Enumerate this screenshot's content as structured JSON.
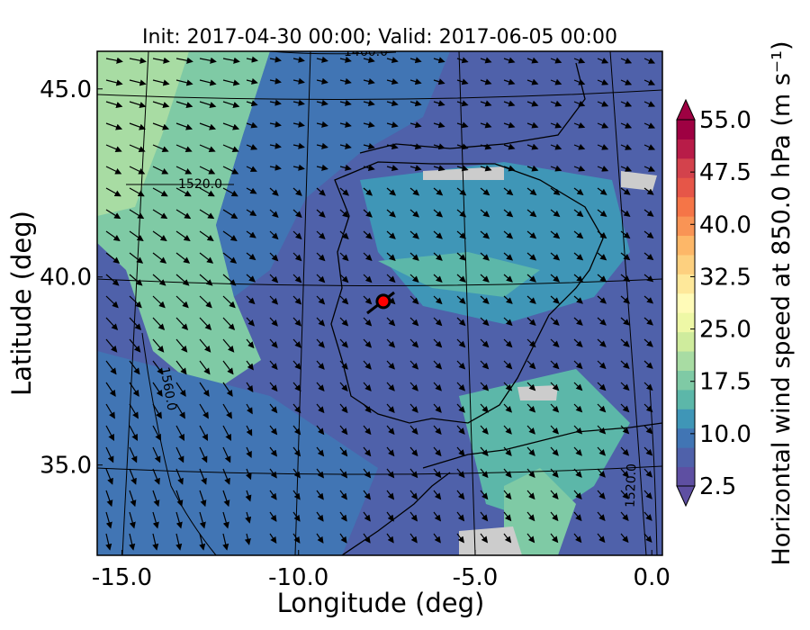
{
  "chart_data": {
    "type": "heatmap",
    "title": "Init: 2017-04-30 00:00; Valid: 2017-06-05 00:00",
    "xlabel": "Longitude (deg)",
    "ylabel": "Latitude (deg)",
    "xlim": [
      -15.7,
      0.3
    ],
    "ylim": [
      32.6,
      46.0
    ],
    "xticks": [
      {
        "value": -15,
        "label": "-15.0"
      },
      {
        "value": -10,
        "label": "-10.0"
      },
      {
        "value": -5,
        "label": "-5.0"
      },
      {
        "value": 0,
        "label": "0.0"
      }
    ],
    "yticks": [
      {
        "value": 35,
        "label": "35.0"
      },
      {
        "value": 40,
        "label": "40.0"
      },
      {
        "value": 45,
        "label": "45.0"
      }
    ],
    "colorbar": {
      "label": "Horizontal wind speed at 850.0 hPa (m s⁻¹)",
      "min": 2.5,
      "max": 55.0,
      "step": 2.5,
      "extend": "both",
      "tick_labels": [
        "2.5",
        "10.0",
        "17.5",
        "25.0",
        "32.5",
        "40.0",
        "47.5",
        "55.0"
      ],
      "tick_values": [
        2.5,
        10.0,
        17.5,
        25.0,
        32.5,
        40.0,
        47.5,
        55.0
      ],
      "colors": [
        "#5e4fa2",
        "#4f61aa",
        "#4175b4",
        "#3f96b7",
        "#5cb7a9",
        "#7fcaa5",
        "#a8dca3",
        "#cfec9d",
        "#eef8a6",
        "#fffbb8",
        "#fee89a",
        "#fdd07f",
        "#fdb768",
        "#f99455",
        "#f57547",
        "#e65648",
        "#d3424c",
        "#b81c48",
        "#9e0142"
      ]
    },
    "contours": [
      {
        "value": 1460.0,
        "label": "1460.0"
      },
      {
        "value": 1520.0,
        "label": "1520.0"
      },
      {
        "value": 1560.0,
        "label": "1560.0"
      }
    ],
    "marker": {
      "lon": -7.6,
      "lat": 39.35,
      "color": "#ff0000"
    },
    "wind_barbs": "vector arrows (mostly NW to SE)"
  }
}
